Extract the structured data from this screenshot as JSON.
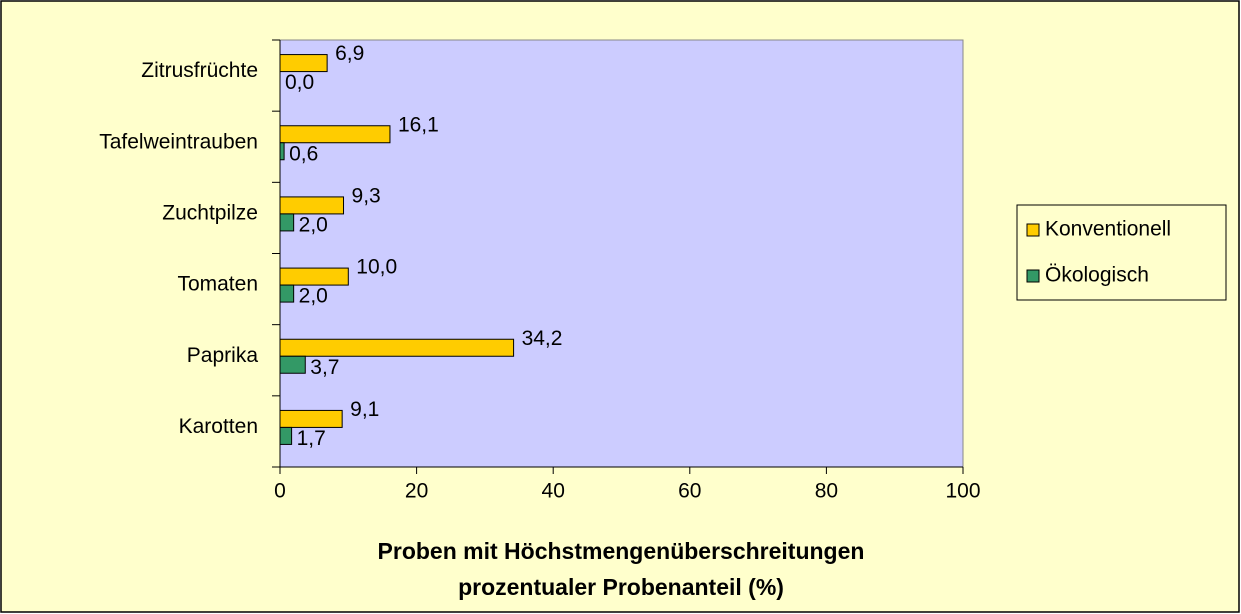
{
  "chart_data": {
    "type": "hbar",
    "categories": [
      "Zitrusfrüchte",
      "Tafelweintrauben",
      "Zuchtpilze",
      "Tomaten",
      "Paprika",
      "Karotten"
    ],
    "series": [
      {
        "name": "Konventionell",
        "color": "#ffcc00",
        "values": [
          6.9,
          16.1,
          9.3,
          10.0,
          34.2,
          9.1
        ],
        "value_labels": [
          "6,9",
          "16,1",
          "9,3",
          "10,0",
          "34,2",
          "9,1"
        ]
      },
      {
        "name": "Ökologisch",
        "color": "#339966",
        "values": [
          0.0,
          0.6,
          2.0,
          2.0,
          3.7,
          1.7
        ],
        "value_labels": [
          "0,0",
          "0,6",
          "2,0",
          "2,0",
          "3,7",
          "1,7"
        ]
      }
    ],
    "xlim": [
      0,
      100
    ],
    "xticks": [
      0,
      20,
      40,
      60,
      80,
      100
    ],
    "xlabel": [
      "Proben mit Höchstmengenüberschreitungen",
      "prozentualer Probenanteil (%)"
    ],
    "legend": "right"
  }
}
